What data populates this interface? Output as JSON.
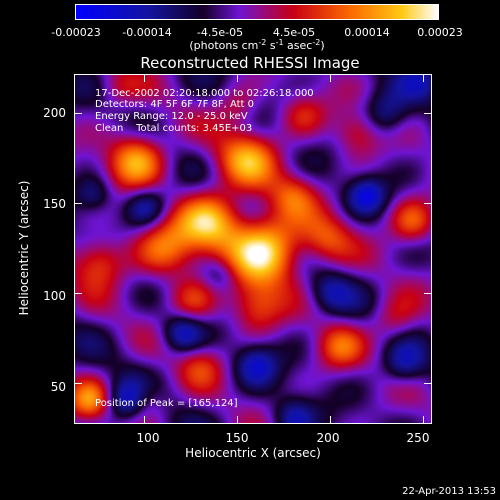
{
  "colorbar": {
    "ticks": [
      "-0.00023",
      "-0.00014",
      "-4.5e-05",
      "4.5e-05",
      "0.00014",
      "0.00023"
    ],
    "units_text": "(photons cm",
    "units_exp1": "-2",
    "units_mid": " s",
    "units_exp2": "-1",
    "units_mid2": " asec",
    "units_exp3": "-2",
    "units_close": ")",
    "colormap": "rhessi-blue-black-red-yellow-white"
  },
  "image": {
    "title": "Reconstructed RHESSI Image",
    "time_range": "17-Dec-2002 02:20:18.000 to 02:26:18.000",
    "detectors": "Detectors: 4F 5F 6F 7F 8F, Att 0",
    "energy_range": "Energy Range: 12.0 - 25.0 keV",
    "clean_totals": "Clean    Total counts: 3.45E+03",
    "peak_position": "Position of Peak = [165,124]",
    "peak": [
      165,
      124
    ]
  },
  "axes": {
    "xlabel": "Heliocentric X (arcsec)",
    "ylabel": "Heliocentric Y (arcsec)",
    "xticks": [
      "100",
      "150",
      "200",
      "250"
    ],
    "yticks": [
      "200",
      "150",
      "100",
      "50"
    ],
    "xlim": [
      62,
      255
    ],
    "ylim": [
      27,
      222
    ]
  },
  "footer": {
    "date_stamp": "22-Apr-2013 13:53"
  }
}
